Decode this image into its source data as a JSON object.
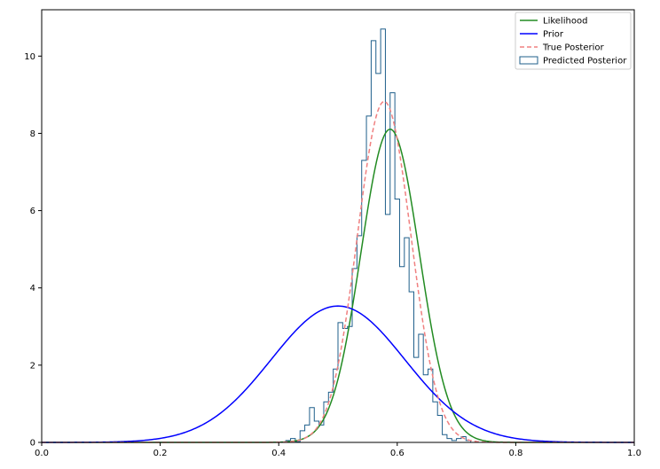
{
  "chart_data": {
    "type": "line",
    "title": "",
    "xlabel": "",
    "ylabel": "",
    "xlim": [
      0.0,
      1.0
    ],
    "ylim": [
      0,
      11.2
    ],
    "x_ticks": [
      "0.0",
      "0.2",
      "0.4",
      "0.6",
      "0.8",
      "1.0"
    ],
    "x_tick_values": [
      0.0,
      0.2,
      0.4,
      0.6,
      0.8,
      1.0
    ],
    "y_ticks": [
      "0",
      "2",
      "4",
      "6",
      "8",
      "10"
    ],
    "y_tick_values": [
      0,
      2,
      4,
      6,
      8,
      10
    ],
    "grid": false,
    "legend_position": "top-right",
    "series": [
      {
        "name": "Likelihood",
        "kind": "normal-pdf",
        "mean": 0.588,
        "sd": 0.0492,
        "color": "#228b22",
        "style": "solid"
      },
      {
        "name": "Prior",
        "kind": "normal-pdf",
        "mean": 0.5,
        "sd": 0.113,
        "color": "#0000ff",
        "style": "solid"
      },
      {
        "name": "True Posterior",
        "kind": "normal-pdf",
        "mean": 0.578,
        "sd": 0.0452,
        "color": "#f08080",
        "style": "dashed"
      },
      {
        "name": "Predicted Posterior",
        "kind": "histogram-step",
        "color": "#1f5f8b",
        "bin_edges": [
          0.412,
          0.42,
          0.428,
          0.436,
          0.444,
          0.452,
          0.46,
          0.468,
          0.476,
          0.484,
          0.492,
          0.5,
          0.508,
          0.516,
          0.524,
          0.532,
          0.54,
          0.548,
          0.556,
          0.564,
          0.572,
          0.58,
          0.588,
          0.596,
          0.604,
          0.612,
          0.62,
          0.628,
          0.636,
          0.644,
          0.652,
          0.66,
          0.668,
          0.676,
          0.684,
          0.692,
          0.7,
          0.708,
          0.716,
          0.724
        ],
        "counts": [
          0.05,
          0.1,
          0.02,
          0.3,
          0.45,
          0.9,
          0.55,
          0.45,
          1.05,
          1.3,
          1.9,
          3.1,
          2.95,
          3.0,
          4.5,
          5.35,
          7.3,
          8.45,
          10.4,
          9.55,
          10.7,
          5.9,
          9.05,
          6.3,
          4.55,
          5.3,
          3.9,
          2.2,
          2.8,
          1.75,
          1.9,
          1.05,
          0.7,
          0.2,
          0.1,
          0.05,
          0.1,
          0.15,
          0.05
        ]
      }
    ]
  }
}
